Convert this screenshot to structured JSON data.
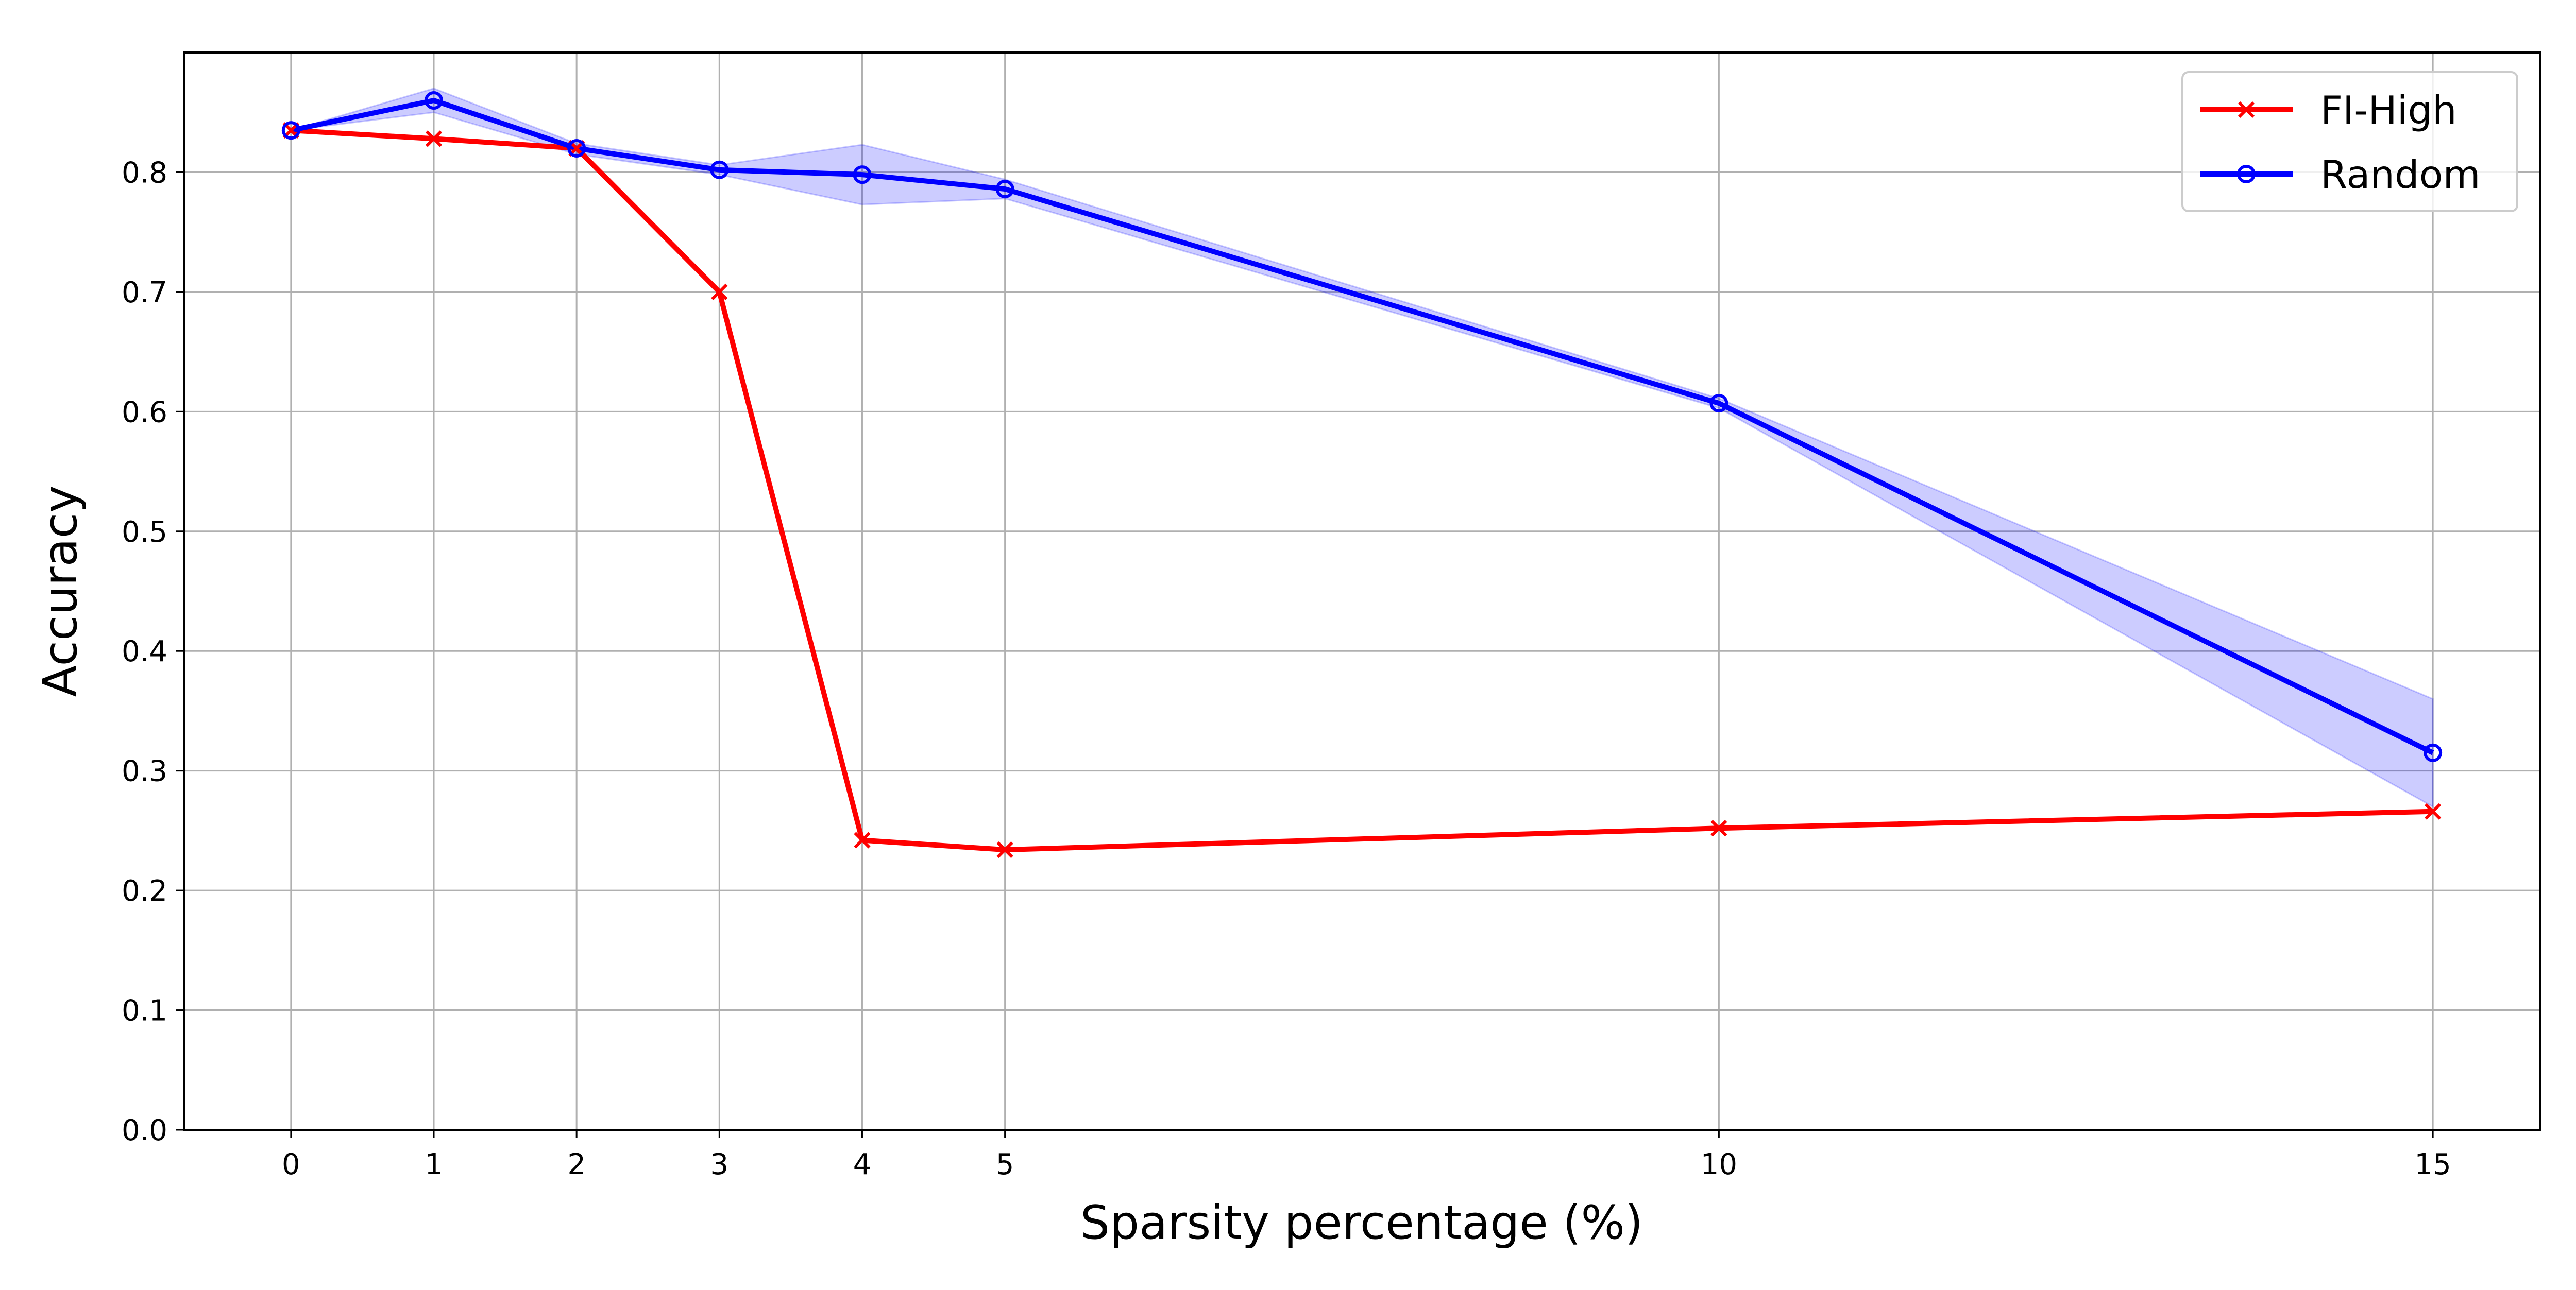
{
  "chart_data": {
    "type": "line",
    "title": "",
    "xlabel": "Sparsity percentage (%)",
    "ylabel": "Accuracy",
    "x": [
      0,
      1,
      2,
      3,
      4,
      5,
      10,
      15
    ],
    "x_ticks": [
      "0",
      "1",
      "2",
      "3",
      "4",
      "5",
      "10",
      "15"
    ],
    "y_ticks": [
      "0.0",
      "0.1",
      "0.2",
      "0.3",
      "0.4",
      "0.5",
      "0.6",
      "0.7",
      "0.8"
    ],
    "xlim": [
      -0.75,
      15.75
    ],
    "ylim": [
      0.0,
      0.9
    ],
    "grid": true,
    "legend": {
      "position": "top-right"
    },
    "series": [
      {
        "name": "FI-High",
        "color": "#ff0000",
        "marker": "x",
        "values": [
          0.835,
          0.828,
          0.82,
          0.7,
          0.242,
          0.234,
          0.252,
          0.266
        ]
      },
      {
        "name": "Random",
        "color": "#0000ff",
        "marker": "circle",
        "values": [
          0.835,
          0.86,
          0.82,
          0.802,
          0.798,
          0.786,
          0.607,
          0.315
        ],
        "band_lower": [
          0.835,
          0.85,
          0.815,
          0.798,
          0.773,
          0.778,
          0.603,
          0.27
        ],
        "band_upper": [
          0.835,
          0.87,
          0.824,
          0.806,
          0.823,
          0.794,
          0.611,
          0.36
        ],
        "band_color": "#0000ff"
      }
    ]
  }
}
